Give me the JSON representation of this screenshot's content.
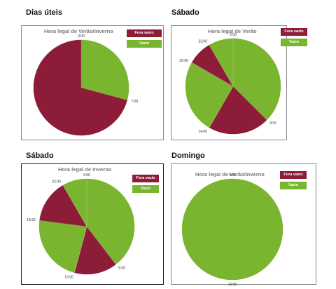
{
  "colors": {
    "fora_vazio": "#8c1c37",
    "vazio": "#7ab52f"
  },
  "legend": {
    "fora_vazio": "Fora vazio",
    "vazio": "Vazio"
  },
  "headings": [
    "Dias úteis",
    "Sábado",
    "Sábado",
    "Domingo"
  ],
  "chart_data": [
    {
      "type": "pie",
      "title": "Hora legal de Verão/Inverno",
      "segments": [
        {
          "name": "Vazio",
          "start": "0:00",
          "end": "7:00",
          "hours": 7
        },
        {
          "name": "Fora vazio",
          "start": "7:00",
          "end": "24:00",
          "hours": 17
        }
      ],
      "labels": [
        "0:00",
        "7:00"
      ]
    },
    {
      "type": "pie",
      "title": "Hora legal de Verão",
      "segments": [
        {
          "name": "Vazio",
          "start": "0:00",
          "end": "9:00",
          "hours": 9
        },
        {
          "name": "Fora vazio",
          "start": "9:00",
          "end": "14:00",
          "hours": 5
        },
        {
          "name": "Vazio",
          "start": "14:00",
          "end": "20:00",
          "hours": 6
        },
        {
          "name": "Fora vazio",
          "start": "20:00",
          "end": "22:00",
          "hours": 2
        },
        {
          "name": "Vazio",
          "start": "22:00",
          "end": "24:00",
          "hours": 2
        }
      ],
      "labels": [
        "0:00",
        "9:00",
        "14:00",
        "20:00",
        "22:00"
      ]
    },
    {
      "type": "pie",
      "title": "Hora legal de Inverno",
      "segments": [
        {
          "name": "Vazio",
          "start": "0:00",
          "end": "9:30",
          "hours": 9.5
        },
        {
          "name": "Fora vazio",
          "start": "9:30",
          "end": "13:00",
          "hours": 3.5
        },
        {
          "name": "Vazio",
          "start": "13:00",
          "end": "18:30",
          "hours": 5.5
        },
        {
          "name": "Fora vazio",
          "start": "18:30",
          "end": "22:00",
          "hours": 3.5
        },
        {
          "name": "Vazio",
          "start": "22:00",
          "end": "24:00",
          "hours": 2
        }
      ],
      "labels": [
        "0:00",
        "9:30",
        "13:00",
        "18:30",
        "22:00"
      ]
    },
    {
      "type": "pie",
      "title": "Hora legal de Verão/Inverno",
      "segments": [
        {
          "name": "Vazio",
          "start": "0:00",
          "end": "24:00",
          "hours": 24
        }
      ],
      "labels": [
        "0:00",
        "12:00"
      ]
    }
  ]
}
